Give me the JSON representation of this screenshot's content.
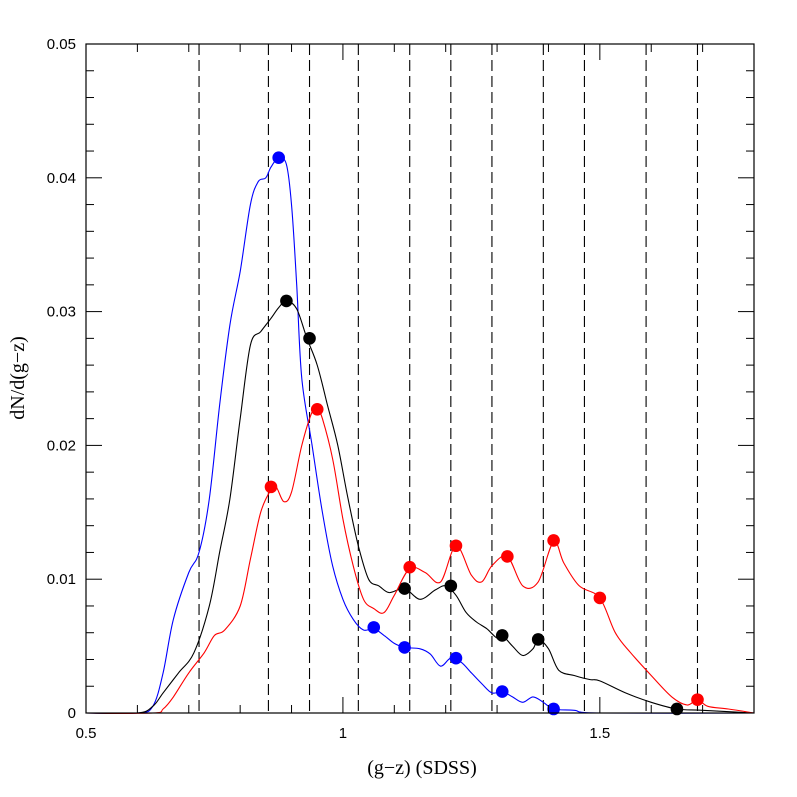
{
  "chart_data": {
    "type": "line",
    "xlabel": "(g−z)  (SDSS)",
    "ylabel": "dN/d(g−z)",
    "xlim": [
      0.5,
      1.8
    ],
    "ylim": [
      0,
      0.05
    ],
    "x_major_ticks": [
      0.5,
      1,
      1.5
    ],
    "x_tick_labels": [
      "0.5",
      "1",
      "1.5"
    ],
    "x_minor_step": 0.1,
    "y_major_ticks": [
      0,
      0.01,
      0.02,
      0.03,
      0.04,
      0.05
    ],
    "y_tick_labels": [
      "0",
      "0.01",
      "0.02",
      "0.03",
      "0.04",
      "0.05"
    ],
    "y_minor_step": 0.002,
    "grid": false,
    "vlines": [
      0.72,
      0.855,
      0.935,
      1.03,
      1.13,
      1.21,
      1.29,
      1.39,
      1.47,
      1.59,
      1.69
    ],
    "series": [
      {
        "color": "#0000ff",
        "x": [
          0.5,
          0.6,
          0.63,
          0.65,
          0.67,
          0.7,
          0.72,
          0.74,
          0.76,
          0.78,
          0.8,
          0.82,
          0.835,
          0.85,
          0.86,
          0.875,
          0.89,
          0.9,
          0.91,
          0.92,
          0.94,
          0.96,
          0.98,
          1.0,
          1.02,
          1.04,
          1.06,
          1.08,
          1.1,
          1.12,
          1.15,
          1.17,
          1.19,
          1.21,
          1.23,
          1.25,
          1.27,
          1.29,
          1.31,
          1.33,
          1.35,
          1.37,
          1.39,
          1.41,
          1.45,
          1.5,
          1.8
        ],
        "y": [
          0,
          0,
          0.0005,
          0.003,
          0.007,
          0.0105,
          0.012,
          0.016,
          0.023,
          0.029,
          0.033,
          0.038,
          0.0397,
          0.04,
          0.0408,
          0.0415,
          0.041,
          0.038,
          0.032,
          0.025,
          0.02,
          0.015,
          0.011,
          0.0085,
          0.007,
          0.0062,
          0.0063,
          0.0058,
          0.0052,
          0.0049,
          0.0048,
          0.0044,
          0.0035,
          0.0041,
          0.0038,
          0.003,
          0.0022,
          0.0015,
          0.0016,
          0.0012,
          0.0008,
          0.0012,
          0.0008,
          0.0003,
          0.0002,
          0,
          0
        ],
        "markers": [
          [
            0.875,
            0.0415
          ],
          [
            1.06,
            0.0064
          ],
          [
            1.12,
            0.0049
          ],
          [
            1.22,
            0.0041
          ],
          [
            1.31,
            0.0016
          ],
          [
            1.41,
            0.0003
          ]
        ]
      },
      {
        "color": "#000000",
        "x": [
          0.5,
          0.6,
          0.63,
          0.65,
          0.68,
          0.71,
          0.74,
          0.76,
          0.78,
          0.8,
          0.82,
          0.84,
          0.86,
          0.875,
          0.89,
          0.91,
          0.93,
          0.95,
          0.97,
          0.99,
          1.01,
          1.03,
          1.05,
          1.07,
          1.09,
          1.12,
          1.15,
          1.18,
          1.2,
          1.22,
          1.24,
          1.26,
          1.28,
          1.3,
          1.31,
          1.33,
          1.35,
          1.37,
          1.38,
          1.4,
          1.42,
          1.45,
          1.48,
          1.5,
          1.55,
          1.6,
          1.65,
          1.7,
          1.8
        ],
        "y": [
          0,
          0,
          0.0005,
          0.0015,
          0.003,
          0.0045,
          0.008,
          0.012,
          0.016,
          0.022,
          0.0275,
          0.0285,
          0.0295,
          0.0303,
          0.0308,
          0.0302,
          0.028,
          0.026,
          0.023,
          0.02,
          0.016,
          0.0125,
          0.01,
          0.0095,
          0.009,
          0.0093,
          0.0085,
          0.0092,
          0.0095,
          0.0088,
          0.0075,
          0.0068,
          0.0063,
          0.0056,
          0.0058,
          0.005,
          0.0043,
          0.0048,
          0.0055,
          0.0048,
          0.0032,
          0.0028,
          0.0025,
          0.0024,
          0.0015,
          0.0008,
          0.0003,
          0.0002,
          0
        ],
        "markers": [
          [
            0.89,
            0.0308
          ],
          [
            0.935,
            0.028
          ],
          [
            1.12,
            0.0093
          ],
          [
            1.21,
            0.0095
          ],
          [
            1.31,
            0.0058
          ],
          [
            1.38,
            0.0055
          ],
          [
            1.65,
            0.0003
          ]
        ]
      },
      {
        "color": "#ff0000",
        "x": [
          0.5,
          0.63,
          0.65,
          0.67,
          0.7,
          0.73,
          0.75,
          0.77,
          0.8,
          0.82,
          0.84,
          0.86,
          0.87,
          0.885,
          0.9,
          0.92,
          0.94,
          0.95,
          0.96,
          0.98,
          1.0,
          1.02,
          1.04,
          1.06,
          1.08,
          1.1,
          1.13,
          1.16,
          1.19,
          1.22,
          1.25,
          1.27,
          1.29,
          1.32,
          1.35,
          1.38,
          1.41,
          1.43,
          1.46,
          1.5,
          1.53,
          1.56,
          1.6,
          1.64,
          1.67,
          1.69,
          1.71,
          1.75,
          1.8
        ],
        "y": [
          0,
          0,
          0.0003,
          0.0012,
          0.003,
          0.0045,
          0.0058,
          0.0062,
          0.008,
          0.0115,
          0.015,
          0.0167,
          0.0169,
          0.0158,
          0.0165,
          0.02,
          0.0225,
          0.0227,
          0.022,
          0.019,
          0.0145,
          0.011,
          0.0085,
          0.0078,
          0.0075,
          0.0088,
          0.0108,
          0.0105,
          0.0098,
          0.0125,
          0.0103,
          0.0098,
          0.011,
          0.0117,
          0.0095,
          0.0098,
          0.0128,
          0.0112,
          0.0095,
          0.0086,
          0.006,
          0.0045,
          0.0028,
          0.0012,
          0.0006,
          0.001,
          0.0005,
          0.0003,
          0
        ],
        "markers": [
          [
            0.86,
            0.0169
          ],
          [
            0.95,
            0.0227
          ],
          [
            1.13,
            0.0109
          ],
          [
            1.22,
            0.0125
          ],
          [
            1.32,
            0.0117
          ],
          [
            1.41,
            0.0129
          ],
          [
            1.5,
            0.0086
          ],
          [
            1.69,
            0.001
          ]
        ]
      }
    ]
  }
}
